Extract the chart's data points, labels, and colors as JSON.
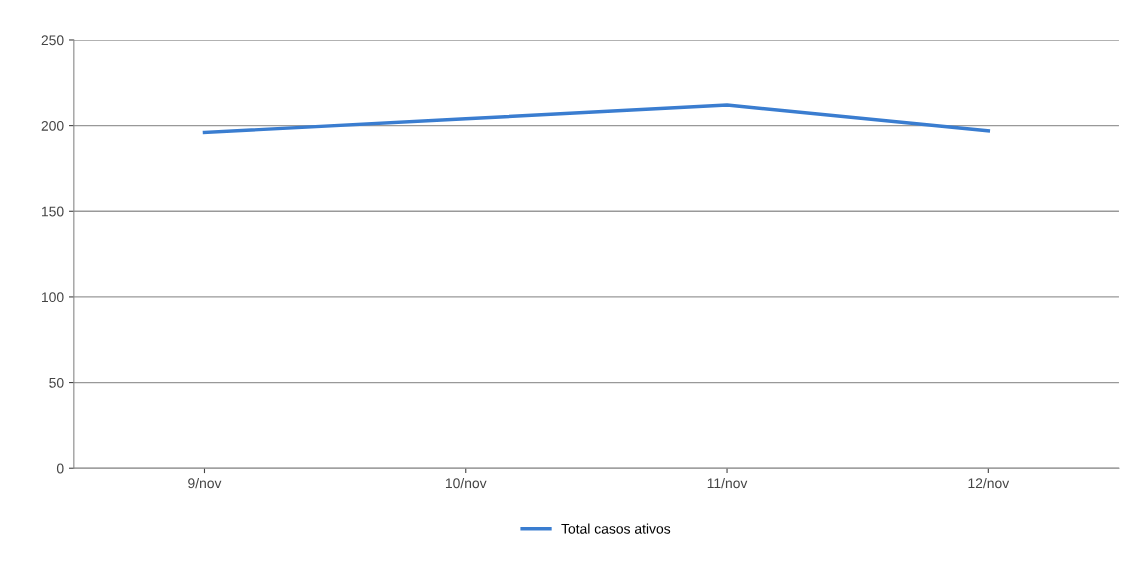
{
  "chart_data": {
    "type": "line",
    "categories": [
      "9/nov",
      "10/nov",
      "11/nov",
      "12/nov"
    ],
    "series": [
      {
        "name": "Total casos ativos",
        "color": "#3a7dd0",
        "values": [
          196,
          204,
          212,
          197
        ]
      }
    ],
    "ylim": [
      0,
      250
    ],
    "yticks": [
      0,
      50,
      100,
      150,
      200,
      250
    ],
    "grid": "y",
    "legend": "bottom",
    "marker": "none",
    "line_style": "solid"
  }
}
